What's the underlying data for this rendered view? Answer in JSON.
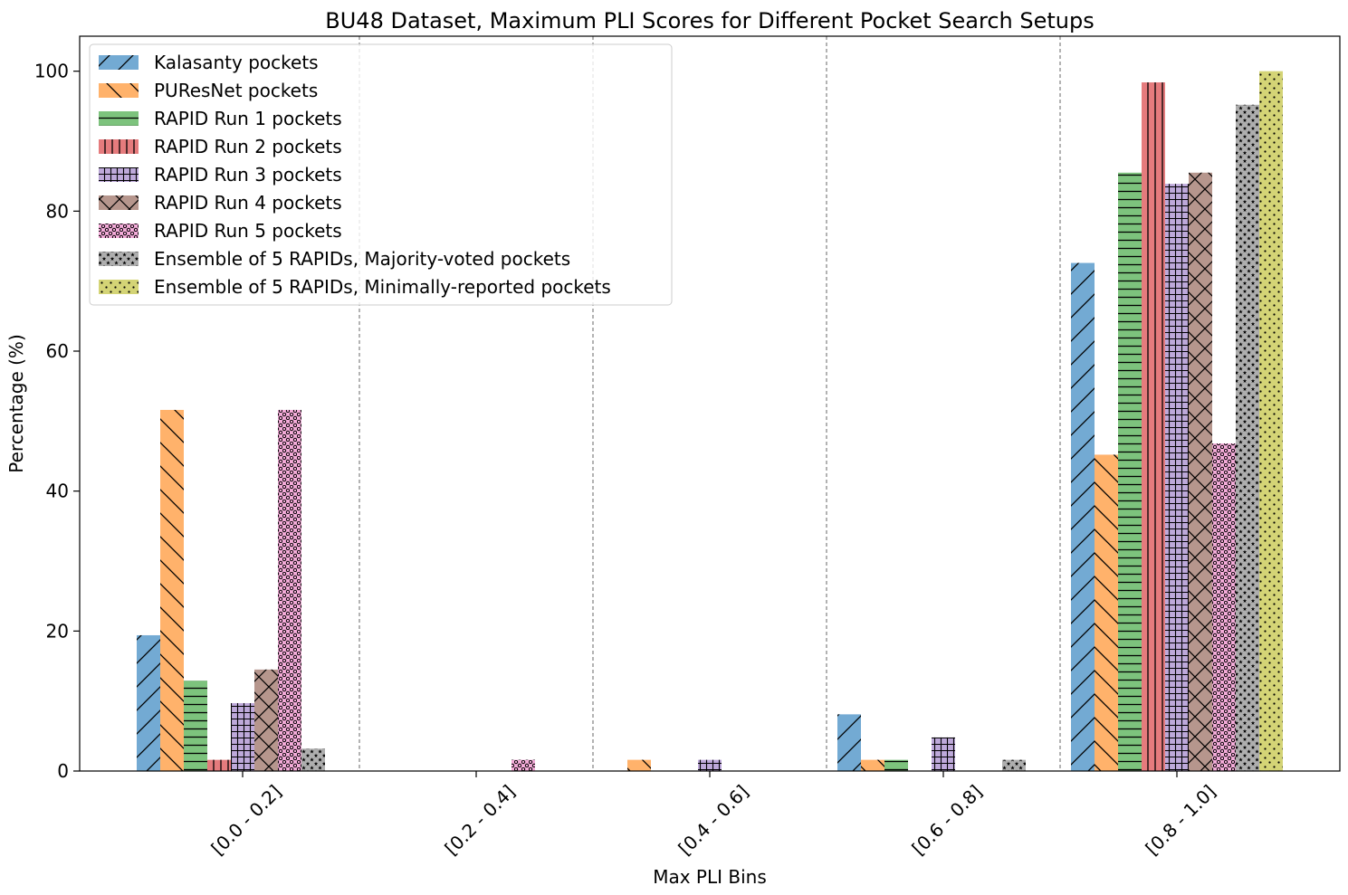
{
  "chart_data": {
    "type": "bar",
    "title": "BU48 Dataset, Maximum PLI Scores for Different Pocket Search Setups",
    "xlabel": "Max PLI Bins",
    "ylabel": "Percentage (%)",
    "ylim": [
      0,
      105
    ],
    "yticks": [
      0,
      20,
      40,
      60,
      80,
      100
    ],
    "categories": [
      "[0.0 - 0.2]",
      "[0.2 - 0.4]",
      "[0.4 - 0.6]",
      "[0.6 - 0.8]",
      "[0.8 - 1.0]"
    ],
    "grid": false,
    "bin_separators": "dashed gray vertical lines between bins",
    "legend_position": "top-left",
    "series": [
      {
        "name": "Kalasanty pockets",
        "color": "#5b9bcb",
        "pattern": "diag-up",
        "values": [
          19.4,
          0,
          0,
          8.1,
          72.6
        ]
      },
      {
        "name": "PUResNet pockets",
        "color": "#ffa451",
        "pattern": "diag-down",
        "values": [
          51.6,
          0,
          1.6,
          1.6,
          45.2
        ]
      },
      {
        "name": "RAPID Run 1 pockets",
        "color": "#66b966",
        "pattern": "horizontal",
        "values": [
          12.9,
          0,
          0,
          1.6,
          85.5
        ]
      },
      {
        "name": "RAPID Run 2 pockets",
        "color": "#e06466",
        "pattern": "vertical",
        "values": [
          1.6,
          0,
          0,
          0,
          98.4
        ]
      },
      {
        "name": "RAPID Run 3 pockets",
        "color": "#b39ad3",
        "pattern": "grid",
        "values": [
          9.7,
          0,
          1.6,
          4.8,
          83.9
        ]
      },
      {
        "name": "RAPID Run 4 pockets",
        "color": "#a98479",
        "pattern": "cross",
        "values": [
          14.5,
          0,
          0,
          0,
          85.5
        ]
      },
      {
        "name": "RAPID Run 5 pockets",
        "color": "#f39ed3",
        "pattern": "circles",
        "values": [
          51.6,
          1.6,
          0,
          0,
          46.8
        ]
      },
      {
        "name": "Ensemble of 5 RAPIDs, Majority-voted pockets",
        "color": "#a0a0a0",
        "pattern": "stars",
        "values": [
          3.2,
          0,
          0,
          1.6,
          95.2
        ]
      },
      {
        "name": "Ensemble of 5 RAPIDs, Minimally-reported pockets",
        "color": "#cdcd5e",
        "pattern": "dots",
        "values": [
          0,
          0,
          0,
          0,
          100
        ]
      }
    ]
  }
}
